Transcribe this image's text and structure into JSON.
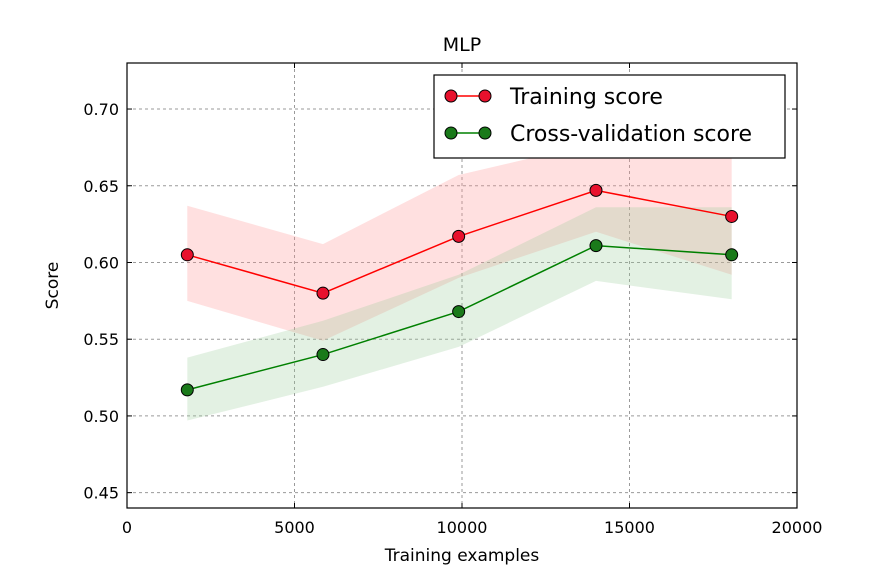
{
  "chart_data": {
    "type": "line",
    "title": "MLP",
    "xlabel": "Training examples",
    "ylabel": "Score",
    "xlim": [
      0,
      20000
    ],
    "ylim": [
      0.44,
      0.73
    ],
    "xticks": [
      0,
      5000,
      10000,
      15000,
      20000
    ],
    "yticks": [
      0.45,
      0.5,
      0.55,
      0.6,
      0.65,
      0.7
    ],
    "xtick_labels": [
      "0",
      "5000",
      "10000",
      "15000",
      "20000"
    ],
    "ytick_labels": [
      "0.45",
      "0.50",
      "0.55",
      "0.60",
      "0.65",
      "0.70"
    ],
    "grid": true,
    "legend_position": "top-right",
    "x": [
      1800,
      5850,
      9900,
      14000,
      18050
    ],
    "series": [
      {
        "name": "Training score",
        "color": "#ff0000",
        "marker_color": "#e8112d",
        "band_color": "#ff9999",
        "values": [
          0.605,
          0.58,
          0.617,
          0.647,
          0.63
        ],
        "lower": [
          0.575,
          0.549,
          0.59,
          0.62,
          0.592
        ],
        "upper": [
          0.637,
          0.612,
          0.657,
          0.678,
          0.668
        ]
      },
      {
        "name": "Cross-validation score",
        "color": "#008000",
        "marker_color": "#1a7a1a",
        "band_color": "#99cc99",
        "values": [
          0.517,
          0.54,
          0.568,
          0.611,
          0.605
        ],
        "lower": [
          0.497,
          0.519,
          0.545,
          0.588,
          0.576
        ],
        "upper": [
          0.538,
          0.562,
          0.592,
          0.636,
          0.636
        ]
      }
    ]
  }
}
